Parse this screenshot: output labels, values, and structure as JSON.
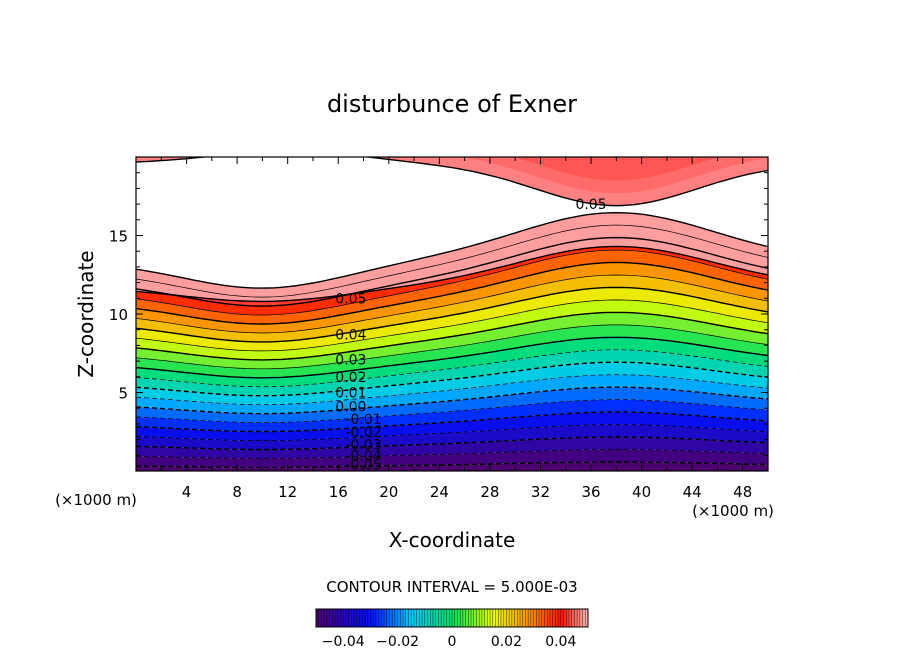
{
  "chart_data": {
    "type": "heatmap",
    "title": "disturbunce of Exner",
    "xlabel": "X-coordinate",
    "ylabel": "Z-coordinate",
    "x_unit_left": "(×1000 m)",
    "x_unit_right": "(×1000 m)",
    "xlim": [
      0,
      50
    ],
    "ylim": [
      0,
      20
    ],
    "x_ticks": [
      4,
      8,
      12,
      16,
      20,
      24,
      28,
      32,
      36,
      40,
      44,
      48
    ],
    "y_ticks": [
      5,
      10,
      15
    ],
    "contour_interval_text": "CONTOUR INTERVAL = 5.000E-03",
    "contour_interval": 0.005,
    "level_range": [
      -0.05,
      0.05
    ],
    "contour_labels": [
      {
        "text": "0.05",
        "x": 36,
        "z": 17.0
      },
      {
        "text": "0.05",
        "x": 17,
        "z": 11.0
      },
      {
        "text": "0.04",
        "x": 17,
        "z": 8.7
      },
      {
        "text": "0.03",
        "x": 17,
        "z": 7.1
      },
      {
        "text": "0.02",
        "x": 17,
        "z": 6.0
      },
      {
        "text": "0.01",
        "x": 17,
        "z": 5.0
      },
      {
        "text": "0.00",
        "x": 17,
        "z": 4.1
      },
      {
        "text": "-0.01",
        "x": 18,
        "z": 3.3
      },
      {
        "text": "-0.02",
        "x": 18,
        "z": 2.5
      },
      {
        "text": "-0.03",
        "x": 18,
        "z": 1.7
      },
      {
        "text": "-0.04",
        "x": 18,
        "z": 1.0
      },
      {
        "text": "-0.05",
        "x": 18,
        "z": 0.4
      }
    ],
    "colorbar": {
      "range": [
        -0.05,
        0.05
      ],
      "tick_labels": [
        "−0.04",
        "−0.02",
        "0",
        "0.02",
        "0.04"
      ],
      "tick_values": [
        -0.04,
        -0.02,
        0,
        0.02,
        0.04
      ]
    },
    "colors": {
      "neg_max": "#4b006e",
      "neg_mid": "#0010ff",
      "zero": "#00e060",
      "pos_low": "#e8ff00",
      "pos_mid": "#ff8000",
      "pos_max": "#ff1000",
      "pos_fade": "#ffb8b8"
    }
  }
}
